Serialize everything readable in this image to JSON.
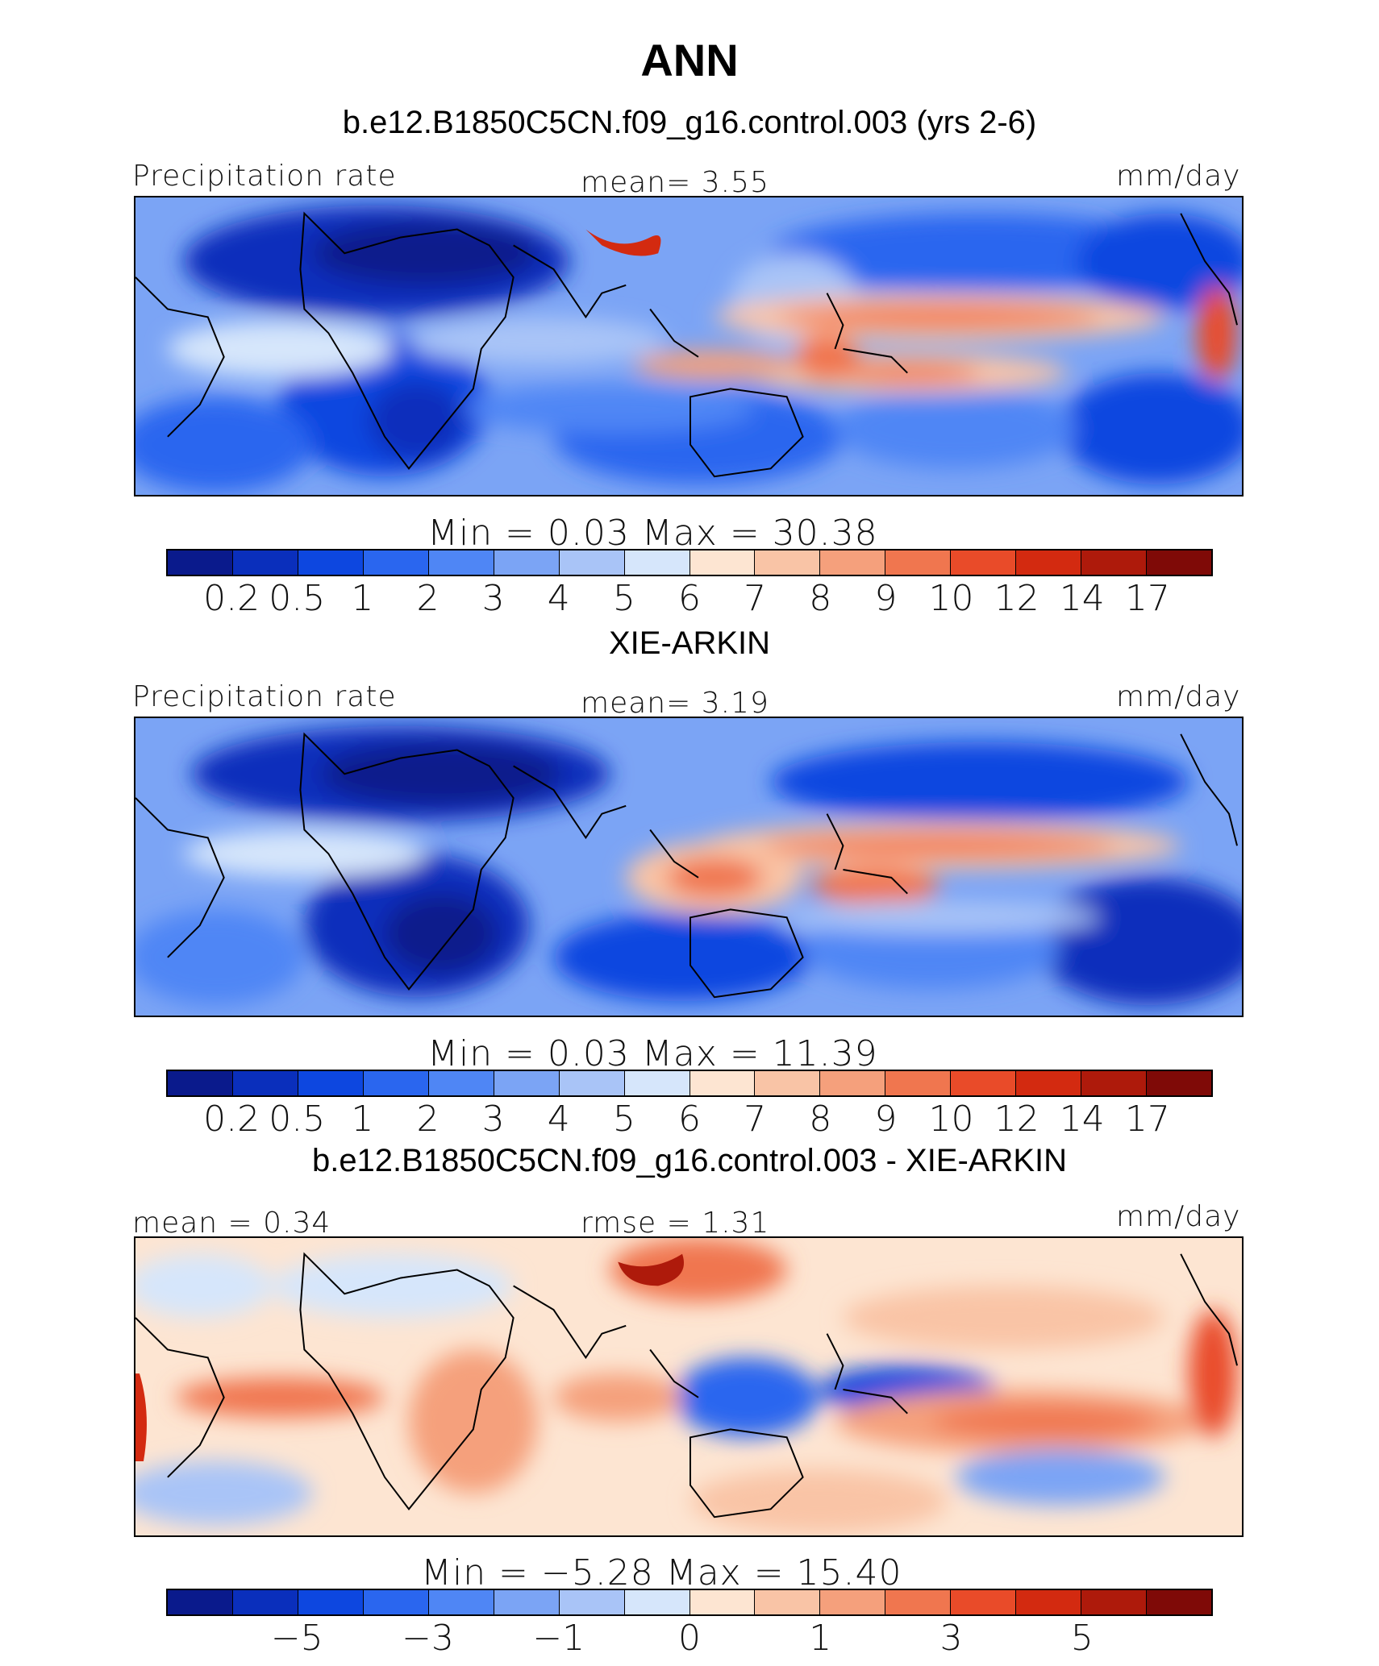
{
  "figure": {
    "season": "ANN",
    "colors": [
      "#0a1a8c",
      "#0a2fbc",
      "#0d47e0",
      "#2a66ef",
      "#4f86f5",
      "#7ba4f5",
      "#a9c4f7",
      "#d6e6fb",
      "#fde5d2",
      "#f9c4a6",
      "#f5a07c",
      "#f0764f",
      "#e94b29",
      "#d32a10",
      "#ae1a0b",
      "#7f0a07"
    ],
    "model_panel": {
      "title": "b.e12.B1850C5CN.f09_g16.control.003 (yrs 2-6)",
      "left_label": "Precipitation rate",
      "center_label": "mean=     3.55",
      "right_label": "mm/day",
      "minmax": "Min  =      0.03  Max  =     30.38"
    },
    "obs_panel": {
      "title": "XIE-ARKIN",
      "left_label": "Precipitation rate",
      "center_label": "mean=     3.19",
      "right_label": "mm/day",
      "minmax": "Min  =      0.03  Max  =     11.39"
    },
    "diff_panel": {
      "title": "b.e12.B1850C5CN.f09_g16.control.003 - XIE-ARKIN",
      "left_label": "mean  =     0.34",
      "center_label": "rmse  =     1.31",
      "right_label": "mm/day",
      "minmax": "Min  =   −5.28  Max  =     15.40"
    },
    "precip_ticks": [
      "0.2",
      "0.5",
      "1",
      "2",
      "3",
      "4",
      "5",
      "6",
      "7",
      "8",
      "9",
      "10",
      "12",
      "14",
      "17"
    ],
    "diff_ticks": [
      "−5",
      "−3",
      "−1",
      "0",
      "1",
      "3",
      "5"
    ]
  }
}
